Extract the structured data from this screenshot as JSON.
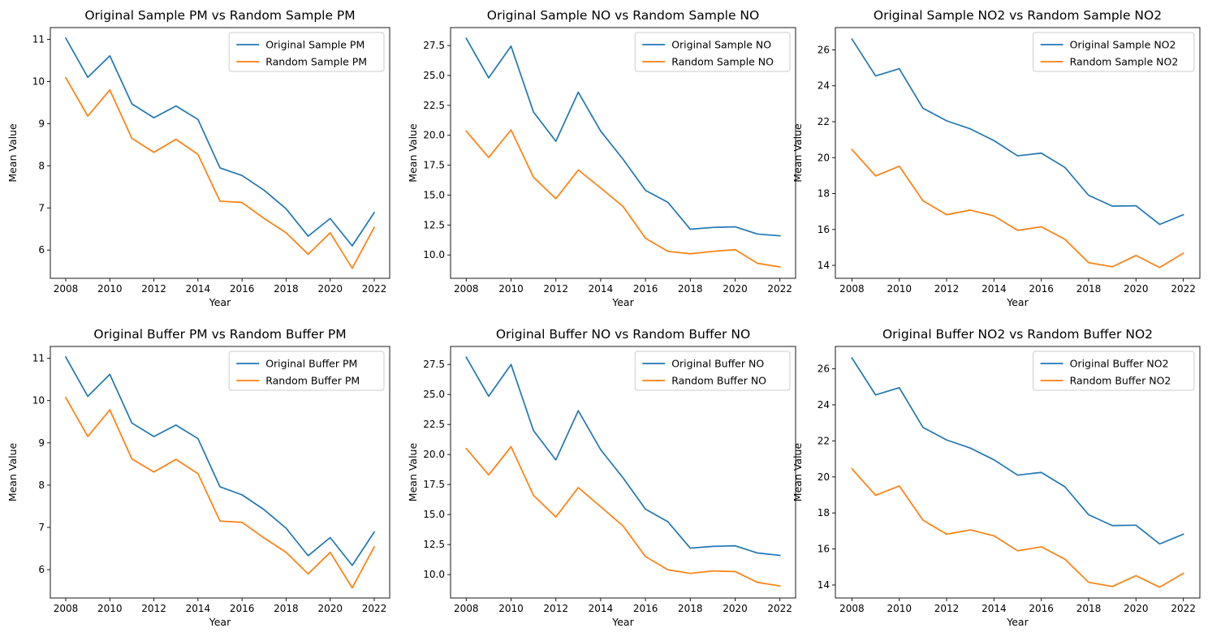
{
  "colors": {
    "original": "#1f77b4",
    "random": "#ff7f0e"
  },
  "chart_data": [
    {
      "type": "line",
      "title": "Original Sample PM vs Random Sample PM",
      "xlabel": "Year",
      "ylabel": "Mean Value",
      "x": [
        2008,
        2009,
        2010,
        2011,
        2012,
        2013,
        2014,
        2015,
        2016,
        2017,
        2018,
        2019,
        2020,
        2021,
        2022
      ],
      "xticks": [
        2008,
        2010,
        2012,
        2014,
        2016,
        2018,
        2020,
        2022
      ],
      "yticks": [
        6,
        7,
        8,
        9,
        10,
        11
      ],
      "ylim": [
        5.33,
        11.28
      ],
      "xlim": [
        2007.3,
        2022.7
      ],
      "legend_position": "top-right",
      "series": [
        {
          "name": "Original Sample PM",
          "values": [
            11.03,
            10.1,
            10.61,
            9.47,
            9.14,
            9.42,
            9.1,
            7.95,
            7.77,
            7.42,
            6.98,
            6.33,
            6.75,
            6.1,
            6.89
          ]
        },
        {
          "name": "Random Sample PM",
          "values": [
            10.09,
            9.18,
            9.8,
            8.65,
            8.32,
            8.63,
            8.27,
            7.16,
            7.13,
            6.75,
            6.41,
            5.9,
            6.41,
            5.57,
            6.54
          ]
        }
      ]
    },
    {
      "type": "line",
      "title": "Original Sample NO vs Random Sample NO",
      "xlabel": "Year",
      "ylabel": "Mean Value",
      "x": [
        2008,
        2009,
        2010,
        2011,
        2012,
        2013,
        2014,
        2015,
        2016,
        2017,
        2018,
        2019,
        2020,
        2021,
        2022
      ],
      "xticks": [
        2008,
        2010,
        2012,
        2014,
        2016,
        2018,
        2020,
        2022
      ],
      "yticks": [
        10.0,
        12.5,
        15.0,
        17.5,
        20.0,
        22.5,
        25.0,
        27.5
      ],
      "ylim": [
        8.05,
        29.0
      ],
      "xlim": [
        2007.3,
        2022.7
      ],
      "legend_position": "top-right",
      "series": [
        {
          "name": "Original Sample NO",
          "values": [
            28.1,
            24.8,
            27.45,
            21.95,
            19.5,
            23.6,
            20.35,
            18.0,
            15.4,
            14.4,
            12.15,
            12.3,
            12.35,
            11.75,
            11.6
          ]
        },
        {
          "name": "Random Sample NO",
          "values": [
            20.35,
            18.15,
            20.45,
            16.5,
            14.7,
            17.1,
            15.6,
            14.05,
            11.4,
            10.3,
            10.1,
            10.3,
            10.45,
            9.3,
            9.0
          ]
        }
      ]
    },
    {
      "type": "line",
      "title": "Original Sample NO2 vs Random Sample NO2",
      "xlabel": "Year",
      "ylabel": "Mean Value",
      "x": [
        2008,
        2009,
        2010,
        2011,
        2012,
        2013,
        2014,
        2015,
        2016,
        2017,
        2018,
        2019,
        2020,
        2021,
        2022
      ],
      "xticks": [
        2008,
        2010,
        2012,
        2014,
        2016,
        2018,
        2020,
        2022
      ],
      "yticks": [
        14,
        16,
        18,
        20,
        22,
        24,
        26
      ],
      "ylim": [
        13.28,
        27.24
      ],
      "xlim": [
        2007.3,
        2022.7
      ],
      "legend_position": "top-right",
      "series": [
        {
          "name": "Original Sample NO2",
          "values": [
            26.6,
            24.55,
            24.95,
            22.75,
            22.05,
            21.6,
            20.95,
            20.1,
            20.25,
            19.45,
            17.9,
            17.3,
            17.32,
            16.28,
            16.82
          ]
        },
        {
          "name": "Random Sample NO2",
          "values": [
            20.45,
            18.98,
            19.52,
            17.6,
            16.82,
            17.08,
            16.75,
            15.95,
            16.15,
            15.45,
            14.15,
            13.92,
            14.55,
            13.88,
            14.68
          ]
        }
      ]
    },
    {
      "type": "line",
      "title": "Original Buffer PM vs Random Buffer PM",
      "xlabel": "Year",
      "ylabel": "Mean Value",
      "x": [
        2008,
        2009,
        2010,
        2011,
        2012,
        2013,
        2014,
        2015,
        2016,
        2017,
        2018,
        2019,
        2020,
        2021,
        2022
      ],
      "xticks": [
        2008,
        2010,
        2012,
        2014,
        2016,
        2018,
        2020,
        2022
      ],
      "yticks": [
        6,
        7,
        8,
        9,
        10,
        11
      ],
      "ylim": [
        5.33,
        11.28
      ],
      "xlim": [
        2007.3,
        2022.7
      ],
      "legend_position": "top-right",
      "series": [
        {
          "name": "Original Buffer PM",
          "values": [
            11.03,
            10.1,
            10.62,
            9.47,
            9.15,
            9.42,
            9.1,
            7.96,
            7.77,
            7.42,
            6.98,
            6.33,
            6.76,
            6.1,
            6.89
          ]
        },
        {
          "name": "Random Buffer PM",
          "values": [
            10.07,
            9.15,
            9.78,
            8.62,
            8.31,
            8.61,
            8.27,
            7.15,
            7.12,
            6.75,
            6.41,
            5.9,
            6.41,
            5.57,
            6.54
          ]
        }
      ]
    },
    {
      "type": "line",
      "title": "Original Buffer NO vs Random Buffer NO",
      "xlabel": "Year",
      "ylabel": "Mean Value",
      "x": [
        2008,
        2009,
        2010,
        2011,
        2012,
        2013,
        2014,
        2015,
        2016,
        2017,
        2018,
        2019,
        2020,
        2021,
        2022
      ],
      "xticks": [
        2008,
        2010,
        2012,
        2014,
        2016,
        2018,
        2020,
        2022
      ],
      "yticks": [
        10.0,
        12.5,
        15.0,
        17.5,
        20.0,
        22.5,
        25.0,
        27.5
      ],
      "ylim": [
        8.05,
        29.0
      ],
      "xlim": [
        2007.3,
        2022.7
      ],
      "legend_position": "top-right",
      "series": [
        {
          "name": "Original Buffer NO",
          "values": [
            28.1,
            24.85,
            27.5,
            22.0,
            19.55,
            23.65,
            20.4,
            18.05,
            15.45,
            14.4,
            12.2,
            12.35,
            12.4,
            11.8,
            11.6
          ]
        },
        {
          "name": "Random Buffer NO",
          "values": [
            20.5,
            18.3,
            20.65,
            16.6,
            14.8,
            17.25,
            15.65,
            14.05,
            11.5,
            10.4,
            10.1,
            10.3,
            10.25,
            9.35,
            9.05
          ]
        }
      ]
    },
    {
      "type": "line",
      "title": "Original Buffer NO2 vs Random Buffer NO2",
      "xlabel": "Year",
      "ylabel": "Mean Value",
      "x": [
        2008,
        2009,
        2010,
        2011,
        2012,
        2013,
        2014,
        2015,
        2016,
        2017,
        2018,
        2019,
        2020,
        2021,
        2022
      ],
      "xticks": [
        2008,
        2010,
        2012,
        2014,
        2016,
        2018,
        2020,
        2022
      ],
      "yticks": [
        14,
        16,
        18,
        20,
        22,
        24,
        26
      ],
      "ylim": [
        13.28,
        27.24
      ],
      "xlim": [
        2007.3,
        2022.7
      ],
      "legend_position": "top-right",
      "series": [
        {
          "name": "Original Buffer NO2",
          "values": [
            26.6,
            24.55,
            24.95,
            22.75,
            22.05,
            21.6,
            20.95,
            20.1,
            20.25,
            19.45,
            17.9,
            17.3,
            17.32,
            16.28,
            16.82
          ]
        },
        {
          "name": "Random Buffer NO2",
          "values": [
            20.45,
            18.98,
            19.5,
            17.6,
            16.82,
            17.06,
            16.73,
            15.9,
            16.12,
            15.43,
            14.15,
            13.92,
            14.52,
            13.88,
            14.65
          ]
        }
      ]
    }
  ]
}
